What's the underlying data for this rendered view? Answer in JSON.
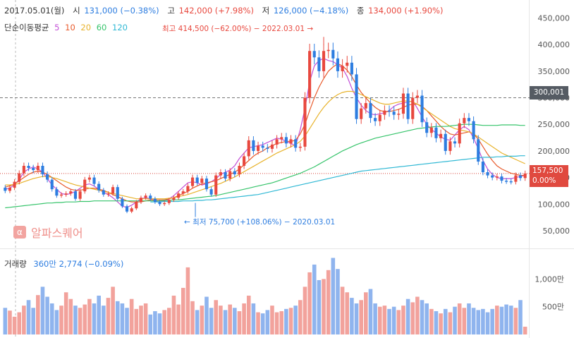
{
  "header": {
    "date": "2017.05.01(월)",
    "open_label": "시",
    "open_value": "131,000 (−0.38%)",
    "high_label": "고",
    "high_value": "142,000 (+7.98%)",
    "low_label": "저",
    "low_value": "126,000 (−4.18%)",
    "close_label": "종",
    "close_value": "134,000 (+1.90%)"
  },
  "ma_legend": {
    "label": "단순이동평균",
    "items": [
      {
        "period": "5",
        "color": "#c34fd6"
      },
      {
        "period": "10",
        "color": "#e85a2b"
      },
      {
        "period": "20",
        "color": "#e8b32c"
      },
      {
        "period": "60",
        "color": "#36c46b"
      },
      {
        "period": "120",
        "color": "#2fb8d4"
      }
    ]
  },
  "volume_legend": {
    "label": "거래량",
    "value": "360만 2,774 (−0.09%)"
  },
  "high_annotation": "최고 414,500 (−62.00%) − 2022.03.01",
  "low_annotation": "최저 75,700 (+108.06%) − 2020.03.01",
  "logo_text": "알파스퀘어",
  "logo_icon": "α",
  "price_tags": {
    "hover": "300,001",
    "current_price": "157,500",
    "current_change": "0.00%"
  },
  "colors": {
    "up": "#e8483e",
    "down": "#2d7de0",
    "up_vol": "#f2a29c",
    "down_vol": "#8fb4ee",
    "tag_dark": "#555b63",
    "tag_current": "#e0493f"
  },
  "chart_data": {
    "type": "candlestick",
    "price_axis": {
      "min": 30000,
      "max": 460000,
      "ticks": [
        "450,000",
        "400,000",
        "350,000",
        "300,000",
        "250,000",
        "200,000",
        "150,000",
        "100,000",
        "50,000"
      ],
      "tick_values": [
        450000,
        400000,
        350000,
        300000,
        250000,
        200000,
        150000,
        100000,
        50000
      ]
    },
    "volume_axis": {
      "max": 1450,
      "ticks": [
        "1,000만",
        "500만"
      ],
      "tick_values": [
        1000,
        500
      ]
    },
    "close": [
      125000,
      131000,
      142000,
      158000,
      172000,
      168000,
      164000,
      172000,
      156000,
      146000,
      128000,
      116000,
      118000,
      120000,
      124000,
      110000,
      124000,
      146000,
      150000,
      138000,
      126000,
      118000,
      120000,
      132000,
      110000,
      96000,
      86000,
      92000,
      104000,
      112000,
      116000,
      110000,
      104000,
      100000,
      102000,
      108000,
      112000,
      120000,
      124000,
      134000,
      150000,
      140000,
      148000,
      128000,
      118000,
      154000,
      160000,
      148000,
      162000,
      156000,
      172000,
      190000,
      220000,
      200000,
      210000,
      206000,
      204000,
      212000,
      222000,
      226000,
      214000,
      222000,
      206000,
      208000,
      300000,
      388000,
      376000,
      350000,
      388000,
      390000,
      374000,
      350000,
      360000,
      366000,
      344000,
      260000,
      280000,
      290000,
      262000,
      256000,
      268000,
      276000,
      274000,
      268000,
      270000,
      308000,
      260000,
      300000,
      304000,
      254000,
      234000,
      244000,
      224000,
      232000,
      200000,
      218000,
      214000,
      252000,
      262000,
      256000,
      222000,
      180000,
      160000,
      154000,
      150000,
      152000,
      144000,
      143000,
      142000,
      154000,
      149000,
      157500
    ],
    "open": [
      131000,
      125000,
      131000,
      142000,
      158000,
      172000,
      168000,
      164000,
      172000,
      156000,
      146000,
      128000,
      116000,
      118000,
      120000,
      124000,
      110000,
      124000,
      146000,
      150000,
      138000,
      126000,
      118000,
      120000,
      132000,
      110000,
      96000,
      86000,
      92000,
      104000,
      112000,
      116000,
      110000,
      104000,
      100000,
      102000,
      108000,
      112000,
      120000,
      124000,
      134000,
      150000,
      140000,
      148000,
      128000,
      118000,
      154000,
      160000,
      148000,
      162000,
      156000,
      172000,
      190000,
      220000,
      200000,
      210000,
      206000,
      204000,
      212000,
      222000,
      226000,
      214000,
      222000,
      206000,
      208000,
      300000,
      388000,
      376000,
      350000,
      388000,
      390000,
      374000,
      350000,
      360000,
      366000,
      344000,
      260000,
      280000,
      290000,
      262000,
      256000,
      268000,
      276000,
      274000,
      268000,
      270000,
      308000,
      260000,
      300000,
      304000,
      254000,
      234000,
      244000,
      224000,
      232000,
      200000,
      218000,
      214000,
      252000,
      262000,
      256000,
      222000,
      180000,
      160000,
      154000,
      150000,
      152000,
      144000,
      143000,
      142000,
      154000,
      149000
    ],
    "series_ma": [
      {
        "name": "5",
        "values": [
          128000,
          130000,
          137000,
          146000,
          160000,
          166000,
          170000,
          166000,
          160000,
          148000,
          136000,
          128000,
          120000,
          118000,
          120000,
          124000,
          130000,
          136000,
          138000,
          134000,
          128000,
          122000,
          118000,
          112000,
          104000,
          96000,
          94000,
          98000,
          104000,
          110000,
          112000,
          110000,
          106000,
          104000,
          106000,
          110000,
          116000,
          124000,
          132000,
          140000,
          142000,
          140000,
          136000,
          138000,
          142000,
          148000,
          156000,
          160000,
          164000,
          172000,
          186000,
          196000,
          206000,
          208000,
          210000,
          212000,
          216000,
          220000,
          224000,
          222000,
          218000,
          214000,
          210000,
          240000,
          280000,
          330000,
          360000,
          370000,
          374000,
          370000,
          368000,
          362000,
          356000,
          340000,
          318000,
          300000,
          286000,
          276000,
          270000,
          268000,
          270000,
          272000,
          276000,
          284000,
          288000,
          290000,
          292000,
          294000,
          280000,
          264000,
          250000,
          240000,
          234000,
          226000,
          222000,
          220000,
          230000,
          240000,
          246000,
          240000,
          224000,
          204000,
          182000,
          166000,
          156000,
          150000,
          148000,
          148000,
          148000,
          150000,
          152000,
          154000
        ]
      },
      {
        "name": "10",
        "values": [
          132000,
          134000,
          138000,
          144000,
          150000,
          156000,
          160000,
          162000,
          160000,
          156000,
          150000,
          144000,
          138000,
          132000,
          128000,
          126000,
          126000,
          128000,
          130000,
          130000,
          128000,
          126000,
          122000,
          118000,
          114000,
          110000,
          106000,
          104000,
          104000,
          104000,
          106000,
          108000,
          108000,
          108000,
          108000,
          110000,
          112000,
          116000,
          120000,
          124000,
          130000,
          134000,
          138000,
          140000,
          142000,
          144000,
          148000,
          152000,
          156000,
          160000,
          166000,
          174000,
          182000,
          190000,
          196000,
          200000,
          206000,
          210000,
          214000,
          216000,
          218000,
          218000,
          220000,
          232000,
          250000,
          276000,
          300000,
          320000,
          336000,
          350000,
          358000,
          364000,
          360000,
          352000,
          340000,
          324000,
          310000,
          300000,
          290000,
          282000,
          276000,
          274000,
          274000,
          276000,
          278000,
          282000,
          286000,
          288000,
          288000,
          284000,
          276000,
          266000,
          256000,
          246000,
          238000,
          232000,
          230000,
          232000,
          234000,
          236000,
          232000,
          222000,
          208000,
          194000,
          182000,
          172000,
          166000,
          162000,
          158000,
          156000,
          154000,
          154000
        ]
      },
      {
        "name": "20",
        "values": [
          136000,
          136000,
          137000,
          139000,
          142000,
          145000,
          148000,
          150000,
          152000,
          152000,
          150000,
          148000,
          145000,
          142000,
          139000,
          136000,
          134000,
          132000,
          130000,
          128000,
          126000,
          124000,
          122000,
          120000,
          118000,
          116000,
          114000,
          112000,
          110000,
          110000,
          110000,
          110000,
          110000,
          110000,
          110000,
          111000,
          112000,
          114000,
          116000,
          118000,
          121000,
          124000,
          127000,
          130000,
          133000,
          136000,
          139000,
          143000,
          147000,
          151000,
          156000,
          161000,
          166000,
          171000,
          176000,
          181000,
          186000,
          191000,
          196000,
          200000,
          204000,
          208000,
          212000,
          218000,
          228000,
          242000,
          256000,
          270000,
          282000,
          292000,
          300000,
          306000,
          310000,
          312000,
          312000,
          310000,
          306000,
          302000,
          298000,
          294000,
          290000,
          288000,
          288000,
          290000,
          292000,
          294000,
          294000,
          292000,
          288000,
          282000,
          276000,
          270000,
          264000,
          258000,
          252000,
          246000,
          242000,
          240000,
          238000,
          236000,
          232000,
          226000,
          220000,
          214000,
          208000,
          202000,
          196000,
          192000,
          188000,
          184000,
          180000,
          176000
        ]
      },
      {
        "name": "60",
        "values": [
          93000,
          94000,
          95000,
          96000,
          97000,
          98000,
          99000,
          100000,
          101000,
          102000,
          102000,
          103000,
          103000,
          104000,
          104000,
          104000,
          105000,
          105000,
          105000,
          106000,
          106000,
          106000,
          106000,
          106000,
          106000,
          106000,
          106000,
          106000,
          106000,
          106000,
          106000,
          106000,
          106000,
          106000,
          107000,
          107000,
          108000,
          108000,
          109000,
          110000,
          111000,
          112000,
          113000,
          114000,
          115000,
          116000,
          118000,
          120000,
          122000,
          124000,
          126000,
          128000,
          130000,
          132000,
          134000,
          136000,
          138000,
          140000,
          143000,
          146000,
          149000,
          152000,
          155000,
          158000,
          162000,
          166000,
          170000,
          175000,
          180000,
          185000,
          190000,
          195000,
          200000,
          204000,
          208000,
          212000,
          215000,
          218000,
          221000,
          224000,
          226000,
          228000,
          230000,
          232000,
          234000,
          236000,
          238000,
          240000,
          242000,
          243000,
          244000,
          245000,
          246000,
          246000,
          246000,
          247000,
          248000,
          249000,
          250000,
          250000,
          250000,
          249000,
          248000,
          248000,
          248000,
          248000,
          249000,
          249000,
          249000,
          249000,
          248000,
          248000
        ]
      },
      {
        "name": "120",
        "values": [
          null,
          null,
          null,
          null,
          null,
          null,
          null,
          null,
          null,
          null,
          null,
          null,
          null,
          null,
          null,
          null,
          null,
          null,
          null,
          null,
          null,
          null,
          null,
          null,
          null,
          null,
          null,
          null,
          null,
          null,
          null,
          104000,
          104000,
          104000,
          105000,
          105000,
          105000,
          105000,
          106000,
          106000,
          106000,
          107000,
          107000,
          108000,
          108000,
          109000,
          110000,
          111000,
          112000,
          113000,
          114000,
          115000,
          116000,
          117000,
          118000,
          120000,
          122000,
          124000,
          126000,
          128000,
          130000,
          132000,
          134000,
          136000,
          138000,
          140000,
          142000,
          144000,
          146000,
          148000,
          150000,
          152000,
          154000,
          156000,
          158000,
          160000,
          162000,
          163000,
          164000,
          165000,
          166000,
          167000,
          168000,
          169000,
          170000,
          171000,
          172000,
          173000,
          174000,
          175000,
          176000,
          177000,
          178000,
          179000,
          180000,
          181000,
          182000,
          183000,
          184000,
          185000,
          186000,
          187000,
          188000,
          188000,
          188000,
          189000,
          189000,
          190000,
          190000,
          190000,
          191000,
          191000
        ]
      }
    ],
    "volume": [
      480,
      430,
      320,
      400,
      520,
      620,
      480,
      710,
      860,
      680,
      560,
      440,
      520,
      760,
      640,
      520,
      480,
      540,
      640,
      560,
      700,
      520,
      660,
      860,
      600,
      560,
      480,
      640,
      460,
      520,
      560,
      360,
      420,
      380,
      440,
      480,
      700,
      540,
      840,
      1210,
      600,
      440,
      520,
      680,
      480,
      620,
      520,
      440,
      540,
      480,
      420,
      560,
      700,
      560,
      400,
      380,
      440,
      520,
      400,
      420,
      460,
      480,
      520,
      620,
      860,
      1120,
      1260,
      980,
      1000,
      1160,
      1380,
      1180,
      860,
      760,
      660,
      560,
      620,
      760,
      820,
      560,
      500,
      520,
      460,
      500,
      440,
      520,
      640,
      580,
      680,
      620,
      560,
      460,
      420,
      380,
      460,
      400,
      500,
      560,
      480,
      560,
      480,
      440,
      460,
      400,
      460,
      520,
      500,
      540,
      520,
      480,
      620,
      140
    ],
    "last_price": 157500,
    "hover_price": 300001,
    "highest": {
      "value": 414500,
      "index": 68
    },
    "lowest": {
      "value": 75700,
      "index": 40
    }
  }
}
